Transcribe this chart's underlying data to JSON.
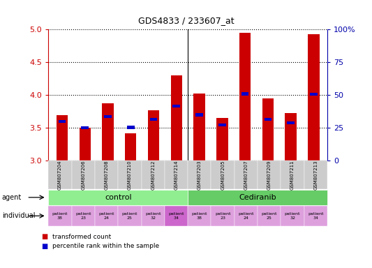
{
  "title": "GDS4833 / 233607_at",
  "samples": [
    "GSM807204",
    "GSM807206",
    "GSM807208",
    "GSM807210",
    "GSM807212",
    "GSM807214",
    "GSM807203",
    "GSM807205",
    "GSM807207",
    "GSM807209",
    "GSM807211",
    "GSM807213"
  ],
  "red_values": [
    3.7,
    3.5,
    3.88,
    3.42,
    3.77,
    4.3,
    4.02,
    3.65,
    4.95,
    3.95,
    3.73,
    4.93
  ],
  "blue_values": [
    3.6,
    3.5,
    3.67,
    3.51,
    3.63,
    3.83,
    3.7,
    3.55,
    4.02,
    3.63,
    3.58,
    4.01
  ],
  "ylim": [
    3.0,
    5.0
  ],
  "yticks": [
    3.0,
    3.5,
    4.0,
    4.5,
    5.0
  ],
  "right_yticks": [
    0,
    25,
    50,
    75,
    100
  ],
  "control_color": "#90EE90",
  "cediranib_color": "#66CC66",
  "indiv_color_light": "#DDA0DD",
  "indiv_color_dark": "#CC66CC",
  "bar_color_red": "#CC0000",
  "bar_color_blue": "#0000CC",
  "tick_color_left": "#CC0000",
  "tick_color_right": "#0000AA",
  "bar_width": 0.5,
  "base": 3.0,
  "patients": [
    "patient\n38",
    "patient\n23",
    "patient\n24",
    "patient\n25",
    "patient\n32",
    "patient\n34"
  ]
}
